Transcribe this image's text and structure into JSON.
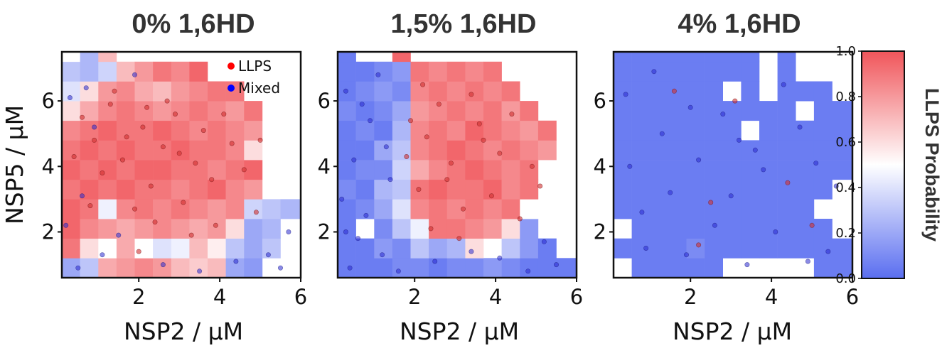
{
  "chart_data": {
    "type": "heatmap+scatter",
    "shared": {
      "xlabel": "NSP2 / μM",
      "ylabel": "NSP5 / μM",
      "xlim": [
        0.1,
        6.0
      ],
      "ylim": [
        0.6,
        7.5
      ],
      "xticks": [
        "2",
        "4",
        "6"
      ],
      "yticks": [
        "2",
        "4",
        "6"
      ],
      "grid": false
    },
    "legend": {
      "placement": "top-right of first panel",
      "items": [
        {
          "label": "LLPS",
          "color": "#ff0000"
        },
        {
          "label": "Mixed",
          "color": "#0000ff"
        }
      ]
    },
    "colorbar": {
      "label": "LLPS Probability",
      "range": [
        0.0,
        1.0
      ],
      "ticks": [
        "0.0",
        "0.2",
        "0.4",
        "0.6",
        "0.8",
        "1.0"
      ],
      "color_low": "#5a6ef0",
      "color_mid": "#ffffff",
      "color_high": "#f0555a"
    },
    "panels": [
      {
        "title": "0% 1,6HD",
        "bin_x_edges": [
          0.1,
          0.55,
          1.0,
          1.45,
          1.9,
          2.35,
          2.8,
          3.25,
          3.7,
          4.15,
          4.6,
          5.05,
          5.5,
          6.0
        ],
        "bin_y_edges": [
          0.6,
          1.2,
          1.8,
          2.4,
          3.0,
          3.6,
          4.2,
          4.8,
          5.4,
          6.0,
          6.6,
          7.2,
          7.5
        ],
        "heatmap": [
          [
            0.2,
            0.3,
            0.75,
            0.8,
            0.85,
            0.8,
            0.7,
            0.65,
            0.7,
            0.2,
            0.15,
            null,
            null
          ],
          [
            0.9,
            0.6,
            0.5,
            0.75,
            0.5,
            0.4,
            0.45,
            0.7,
            0.55,
            0.3,
            0.2,
            0.3,
            null
          ],
          [
            0.95,
            0.85,
            0.8,
            0.75,
            0.8,
            0.85,
            0.8,
            0.75,
            0.8,
            0.6,
            0.2,
            0.25,
            null
          ],
          [
            0.95,
            0.9,
            0.45,
            0.85,
            0.9,
            0.85,
            0.9,
            0.85,
            0.8,
            0.85,
            0.35,
            0.3,
            0.25
          ],
          [
            0.9,
            0.95,
            0.9,
            0.95,
            0.9,
            0.9,
            0.85,
            0.9,
            0.95,
            0.85,
            0.8,
            null,
            null
          ],
          [
            0.95,
            0.9,
            0.95,
            0.9,
            0.95,
            0.95,
            0.9,
            0.9,
            0.85,
            0.9,
            0.95,
            null,
            null
          ],
          [
            0.9,
            0.95,
            0.9,
            0.95,
            0.9,
            0.9,
            0.95,
            0.9,
            0.9,
            0.85,
            0.6,
            null,
            null
          ],
          [
            0.85,
            0.9,
            0.95,
            0.9,
            0.9,
            0.95,
            0.9,
            0.85,
            0.9,
            0.85,
            0.8,
            null,
            null
          ],
          [
            0.6,
            0.75,
            0.85,
            0.9,
            0.85,
            0.8,
            0.85,
            0.9,
            0.85,
            0.8,
            0.9,
            null,
            null
          ],
          [
            0.4,
            0.6,
            0.8,
            0.85,
            0.75,
            0.7,
            0.8,
            0.85,
            0.9,
            0.9,
            null,
            null,
            null
          ],
          [
            0.3,
            0.25,
            0.35,
            0.7,
            0.8,
            0.9,
            0.85,
            0.95,
            null,
            null,
            null,
            null,
            null
          ],
          [
            0.5,
            0.25,
            0.7,
            null,
            null,
            null,
            null,
            null,
            null,
            null,
            null,
            null,
            null
          ]
        ],
        "scatter_llps": [
          [
            2.1,
            5.2
          ],
          [
            2.6,
            4.6
          ],
          [
            1.3,
            5.9
          ],
          [
            3.4,
            4.1
          ],
          [
            0.9,
            4.8
          ],
          [
            2.9,
            5.6
          ],
          [
            3.8,
            3.6
          ],
          [
            1.6,
            4.2
          ],
          [
            2.3,
            3.4
          ],
          [
            4.3,
            4.7
          ],
          [
            1.1,
            3.8
          ],
          [
            3.1,
            2.9
          ],
          [
            0.6,
            5.5
          ],
          [
            2.7,
            6.0
          ],
          [
            1.9,
            2.7
          ],
          [
            3.6,
            5.1
          ],
          [
            4.6,
            3.9
          ],
          [
            1.4,
            6.3
          ],
          [
            2.4,
            2.3
          ],
          [
            3.3,
            1.9
          ],
          [
            0.8,
            2.8
          ],
          [
            4.9,
            2.6
          ],
          [
            2.0,
            1.4
          ],
          [
            3.9,
            2.2
          ],
          [
            1.7,
            4.9
          ],
          [
            2.2,
            5.8
          ],
          [
            3.0,
            4.4
          ],
          [
            0.4,
            4.3
          ],
          [
            4.1,
            5.6
          ],
          [
            5.0,
            4.8
          ]
        ],
        "scatter_mixed": [
          [
            0.3,
            6.1
          ],
          [
            0.7,
            6.4
          ],
          [
            1.1,
            1.3
          ],
          [
            0.5,
            0.9
          ],
          [
            1.5,
            1.9
          ],
          [
            5.2,
            1.3
          ],
          [
            5.7,
            2.0
          ],
          [
            0.2,
            2.2
          ],
          [
            2.6,
            1.0
          ],
          [
            4.4,
            1.1
          ],
          [
            1.9,
            6.8
          ],
          [
            0.9,
            5.2
          ],
          [
            3.5,
            0.8
          ],
          [
            5.5,
            0.9
          ],
          [
            0.6,
            3.1
          ]
        ]
      },
      {
        "title": "1,5% 1,6HD",
        "bin_x_edges": [
          0.1,
          0.55,
          1.0,
          1.45,
          1.9,
          2.35,
          2.8,
          3.25,
          3.7,
          4.15,
          4.6,
          5.05,
          5.5,
          6.0
        ],
        "bin_y_edges": [
          0.6,
          1.2,
          1.8,
          2.4,
          3.0,
          3.6,
          4.2,
          4.8,
          5.4,
          6.0,
          6.6,
          7.2,
          7.5
        ],
        "heatmap": [
          [
            0.05,
            0.05,
            0.05,
            0.1,
            0.1,
            0.05,
            0.1,
            0.1,
            0.15,
            0.1,
            0.05,
            0.05,
            0.05
          ],
          [
            0.05,
            0.05,
            0.15,
            0.1,
            0.3,
            0.2,
            0.25,
            0.6,
            null,
            0.3,
            0.15,
            0.05,
            null
          ],
          [
            0.05,
            null,
            0.1,
            0.3,
            0.45,
            0.9,
            0.9,
            0.85,
            0.8,
            0.6,
            0.15,
            null,
            null
          ],
          [
            0.05,
            0.1,
            0.2,
            0.4,
            0.85,
            0.9,
            0.85,
            0.9,
            0.85,
            0.9,
            0.5,
            null,
            null
          ],
          [
            0.1,
            0.05,
            0.25,
            0.3,
            0.9,
            0.95,
            0.9,
            0.9,
            0.95,
            0.85,
            0.9,
            null,
            null
          ],
          [
            0.05,
            0.1,
            0.1,
            0.35,
            0.75,
            0.85,
            0.9,
            0.95,
            0.9,
            0.85,
            0.9,
            null,
            null
          ],
          [
            0.05,
            0.05,
            0.2,
            0.3,
            0.85,
            0.9,
            0.95,
            0.9,
            0.85,
            0.9,
            0.85,
            0.8,
            null
          ],
          [
            0.05,
            0.1,
            0.05,
            0.25,
            0.85,
            0.9,
            0.85,
            0.95,
            0.9,
            0.85,
            0.8,
            0.9,
            null
          ],
          [
            0.1,
            0.05,
            0.1,
            0.2,
            0.8,
            0.85,
            0.9,
            0.85,
            0.9,
            0.8,
            0.9,
            null,
            null
          ],
          [
            0.05,
            0.1,
            0.15,
            0.1,
            0.85,
            0.9,
            0.85,
            0.9,
            0.85,
            0.9,
            null,
            null,
            null
          ],
          [
            0.05,
            0.05,
            0.1,
            0.15,
            0.9,
            0.85,
            0.9,
            0.85,
            0.9,
            null,
            null,
            null,
            null
          ],
          [
            0.05,
            null,
            null,
            0.95,
            null,
            null,
            null,
            null,
            null,
            null,
            null,
            null,
            null
          ]
        ],
        "scatter_llps": [
          [
            2.3,
            4.9
          ],
          [
            2.9,
            4.1
          ],
          [
            3.6,
            5.3
          ],
          [
            2.1,
            3.3
          ],
          [
            3.2,
            2.7
          ],
          [
            4.1,
            4.4
          ],
          [
            2.6,
            5.9
          ],
          [
            3.9,
            3.1
          ],
          [
            4.6,
            2.4
          ],
          [
            2.4,
            2.1
          ],
          [
            3.4,
            6.2
          ],
          [
            4.9,
            4.0
          ],
          [
            1.9,
            5.4
          ],
          [
            2.8,
            3.6
          ],
          [
            3.7,
            4.8
          ],
          [
            4.4,
            5.6
          ],
          [
            2.2,
            6.5
          ],
          [
            3.1,
            1.8
          ],
          [
            5.1,
            3.4
          ],
          [
            1.8,
            4.3
          ]
        ],
        "scatter_mixed": [
          [
            0.3,
            6.3
          ],
          [
            0.5,
            4.2
          ],
          [
            0.8,
            2.5
          ],
          [
            1.2,
            1.3
          ],
          [
            0.4,
            0.9
          ],
          [
            1.4,
            3.6
          ],
          [
            0.9,
            5.4
          ],
          [
            5.5,
            1.0
          ],
          [
            4.8,
            0.8
          ],
          [
            2.5,
            1.1
          ],
          [
            3.4,
            1.4
          ],
          [
            0.2,
            3.0
          ],
          [
            1.1,
            6.8
          ],
          [
            0.6,
            1.8
          ],
          [
            5.2,
            1.7
          ],
          [
            1.6,
            0.8
          ],
          [
            0.7,
            5.9
          ],
          [
            1.3,
            4.6
          ],
          [
            4.1,
            1.2
          ],
          [
            0.3,
            2.0
          ]
        ]
      },
      {
        "title": "4% 1,6HD",
        "bin_x_edges": [
          0.1,
          0.55,
          1.0,
          1.45,
          1.9,
          2.35,
          2.8,
          3.25,
          3.7,
          4.15,
          4.6,
          5.05,
          5.5,
          6.0
        ],
        "bin_y_edges": [
          0.6,
          1.2,
          1.8,
          2.4,
          3.0,
          3.6,
          4.2,
          4.8,
          5.4,
          6.0,
          6.6,
          7.2,
          7.5
        ],
        "heatmap": [
          [
            null,
            0.05,
            0.05,
            0.05,
            0.05,
            0.05,
            null,
            null,
            null,
            null,
            null,
            0.05,
            0.05
          ],
          [
            0.05,
            0.05,
            0.05,
            0.05,
            0.1,
            0.05,
            0.05,
            0.05,
            0.05,
            0.05,
            0.05,
            0.05,
            0.05
          ],
          [
            null,
            0.05,
            0.05,
            0.05,
            0.05,
            0.05,
            0.05,
            0.05,
            0.05,
            0.05,
            0.05,
            0.05,
            null
          ],
          [
            0.05,
            0.05,
            0.05,
            0.05,
            0.05,
            0.05,
            0.05,
            0.05,
            0.05,
            0.05,
            0.05,
            null,
            null
          ],
          [
            0.05,
            0.05,
            0.05,
            0.05,
            0.05,
            0.05,
            0.05,
            0.05,
            0.05,
            0.05,
            0.05,
            0.05,
            null
          ],
          [
            0.05,
            0.05,
            0.05,
            0.05,
            0.05,
            0.05,
            0.05,
            0.05,
            0.05,
            0.05,
            0.05,
            0.05,
            0.05
          ],
          [
            0.05,
            0.05,
            0.05,
            0.05,
            0.05,
            0.05,
            0.05,
            0.05,
            0.05,
            0.05,
            0.05,
            0.05,
            0.05
          ],
          [
            0.05,
            0.05,
            0.05,
            0.05,
            0.05,
            0.05,
            0.05,
            null,
            0.05,
            0.05,
            0.05,
            0.05,
            0.05
          ],
          [
            0.05,
            0.05,
            0.05,
            0.05,
            0.05,
            0.05,
            0.05,
            0.05,
            0.05,
            0.05,
            null,
            0.05,
            0.05
          ],
          [
            0.05,
            0.05,
            0.05,
            0.05,
            0.05,
            0.05,
            null,
            0.05,
            null,
            0.05,
            0.05,
            0.05,
            null
          ],
          [
            0.05,
            0.05,
            0.05,
            0.05,
            0.05,
            0.05,
            0.05,
            0.05,
            null,
            0.05,
            null,
            null,
            null
          ],
          [
            0.05,
            0.05,
            0.05,
            0.05,
            0.05,
            0.05,
            0.05,
            0.05,
            null,
            0.05,
            null,
            null,
            null
          ]
        ],
        "scatter_llps": [
          [
            1.6,
            6.3
          ],
          [
            2.5,
            2.9
          ],
          [
            3.1,
            6.0
          ],
          [
            4.4,
            3.5
          ],
          [
            2.2,
            1.6
          ],
          [
            5.0,
            2.2
          ]
        ],
        "scatter_mixed": [
          [
            0.4,
            6.2
          ],
          [
            1.3,
            5.0
          ],
          [
            2.2,
            4.2
          ],
          [
            3.0,
            3.1
          ],
          [
            4.1,
            2.0
          ],
          [
            5.4,
            1.4
          ],
          [
            0.8,
            2.6
          ],
          [
            1.9,
            1.3
          ],
          [
            2.8,
            5.6
          ],
          [
            3.6,
            4.5
          ],
          [
            4.7,
            5.2
          ],
          [
            5.6,
            3.4
          ],
          [
            0.5,
            4.0
          ],
          [
            1.5,
            3.2
          ],
          [
            2.6,
            2.2
          ],
          [
            3.4,
            1.0
          ],
          [
            4.3,
            6.5
          ],
          [
            5.1,
            4.1
          ],
          [
            1.1,
            6.9
          ],
          [
            2.0,
            5.8
          ],
          [
            3.8,
            3.9
          ],
          [
            4.9,
            1.1
          ],
          [
            0.9,
            1.5
          ],
          [
            3.2,
            4.8
          ]
        ]
      }
    ]
  }
}
